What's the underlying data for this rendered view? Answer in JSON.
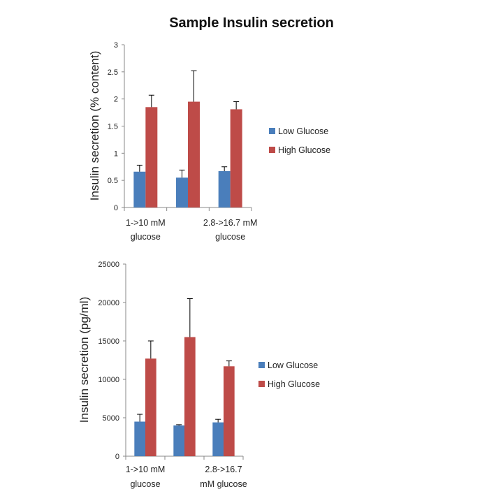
{
  "title": "Sample Insulin secretion",
  "colors": {
    "low": "#4a7ebb",
    "high": "#be4b48"
  },
  "chart_data": [
    {
      "type": "bar",
      "title": "Sample Insulin secretion",
      "ylabel": "Insulin secretion  (% content)",
      "ylim": [
        0,
        3
      ],
      "yticks": [
        "0",
        "0.5",
        "1",
        "1.5",
        "2",
        "2.5",
        "3"
      ],
      "ytick_values": [
        0,
        0.5,
        1,
        1.5,
        2,
        2.5,
        3
      ],
      "categories": [
        [
          "1->10 mM",
          "glucose"
        ],
        [
          "",
          ""
        ],
        [
          "2.8->16.7 mM",
          "glucose"
        ]
      ],
      "legend": "right",
      "series": [
        {
          "name": "Low Glucose",
          "values": [
            0.66,
            0.55,
            0.67
          ],
          "error_upper": [
            0.78,
            0.69,
            0.75
          ]
        },
        {
          "name": "High Glucose",
          "values": [
            1.85,
            1.95,
            1.81
          ],
          "error_upper": [
            2.07,
            2.52,
            1.95
          ]
        }
      ]
    },
    {
      "type": "bar",
      "ylabel": "Insulin secretion  (pg/ml)",
      "ylim": [
        0,
        25000
      ],
      "yticks": [
        "0",
        "5000",
        "10000",
        "15000",
        "20000",
        "25000"
      ],
      "ytick_values": [
        0,
        5000,
        10000,
        15000,
        20000,
        25000
      ],
      "categories": [
        [
          "1->10 mM",
          "glucose"
        ],
        [
          "",
          ""
        ],
        [
          "2.8->16.7",
          "mM glucose"
        ]
      ],
      "legend": "right",
      "series": [
        {
          "name": "Low Glucose",
          "values": [
            4500,
            4000,
            4400
          ],
          "error_upper": [
            5450,
            4100,
            4800
          ]
        },
        {
          "name": "High Glucose",
          "values": [
            12700,
            15500,
            11700
          ],
          "error_upper": [
            15000,
            20500,
            12400
          ]
        }
      ]
    }
  ]
}
